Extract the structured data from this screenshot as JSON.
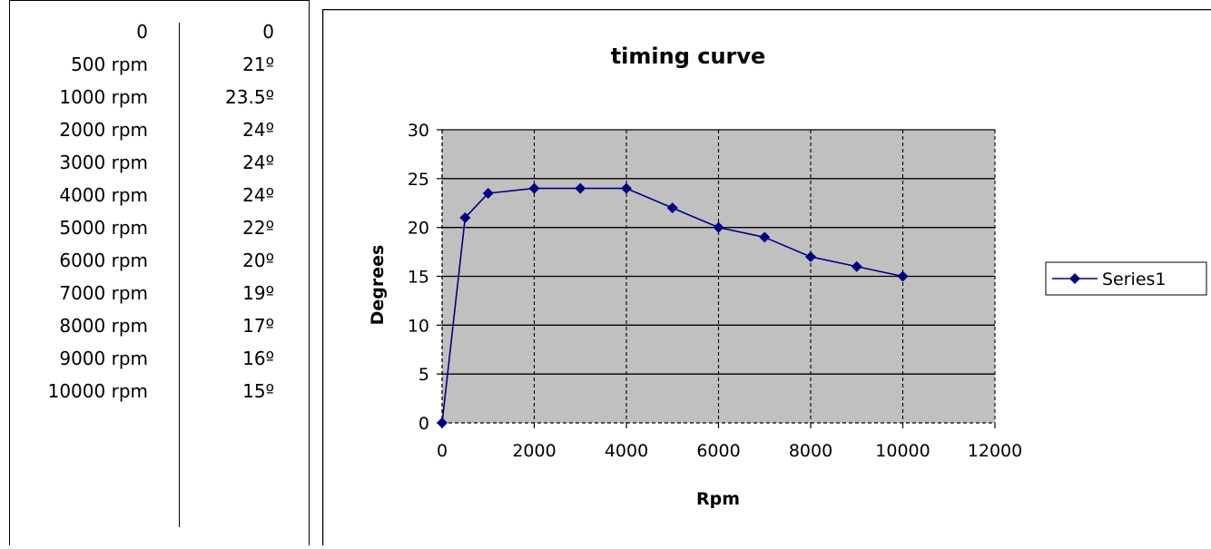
{
  "table": {
    "rows": [
      {
        "rpm": "0",
        "deg": "0"
      },
      {
        "rpm": "500 rpm",
        "deg": "21º"
      },
      {
        "rpm": "1000 rpm",
        "deg": "23.5º"
      },
      {
        "rpm": "2000 rpm",
        "deg": "24º"
      },
      {
        "rpm": "3000 rpm",
        "deg": "24º"
      },
      {
        "rpm": "4000 rpm",
        "deg": "24º"
      },
      {
        "rpm": "5000 rpm",
        "deg": "22º"
      },
      {
        "rpm": "6000 rpm",
        "deg": "20º"
      },
      {
        "rpm": "7000 rpm",
        "deg": "19º"
      },
      {
        "rpm": "8000 rpm",
        "deg": "17º"
      },
      {
        "rpm": "9000 rpm",
        "deg": "16º"
      },
      {
        "rpm": "10000 rpm",
        "deg": "15º"
      }
    ]
  },
  "chart_data": {
    "type": "line",
    "title": "timing curve",
    "xlabel": "Rpm",
    "ylabel": "Degrees",
    "xlim": [
      0,
      12000
    ],
    "ylim": [
      0,
      30
    ],
    "xticks": [
      0,
      2000,
      4000,
      6000,
      8000,
      10000,
      12000
    ],
    "yticks": [
      0,
      5,
      10,
      15,
      20,
      25,
      30
    ],
    "grid": true,
    "legend": "right",
    "plot_background": "#c0c0c0",
    "series": [
      {
        "name": "Series1",
        "color": "#000080",
        "marker": "diamond",
        "x": [
          0,
          500,
          1000,
          2000,
          3000,
          4000,
          5000,
          6000,
          7000,
          8000,
          9000,
          10000
        ],
        "y": [
          0,
          21,
          23.5,
          24,
          24,
          24,
          22,
          20,
          19,
          17,
          16,
          15
        ]
      }
    ]
  }
}
